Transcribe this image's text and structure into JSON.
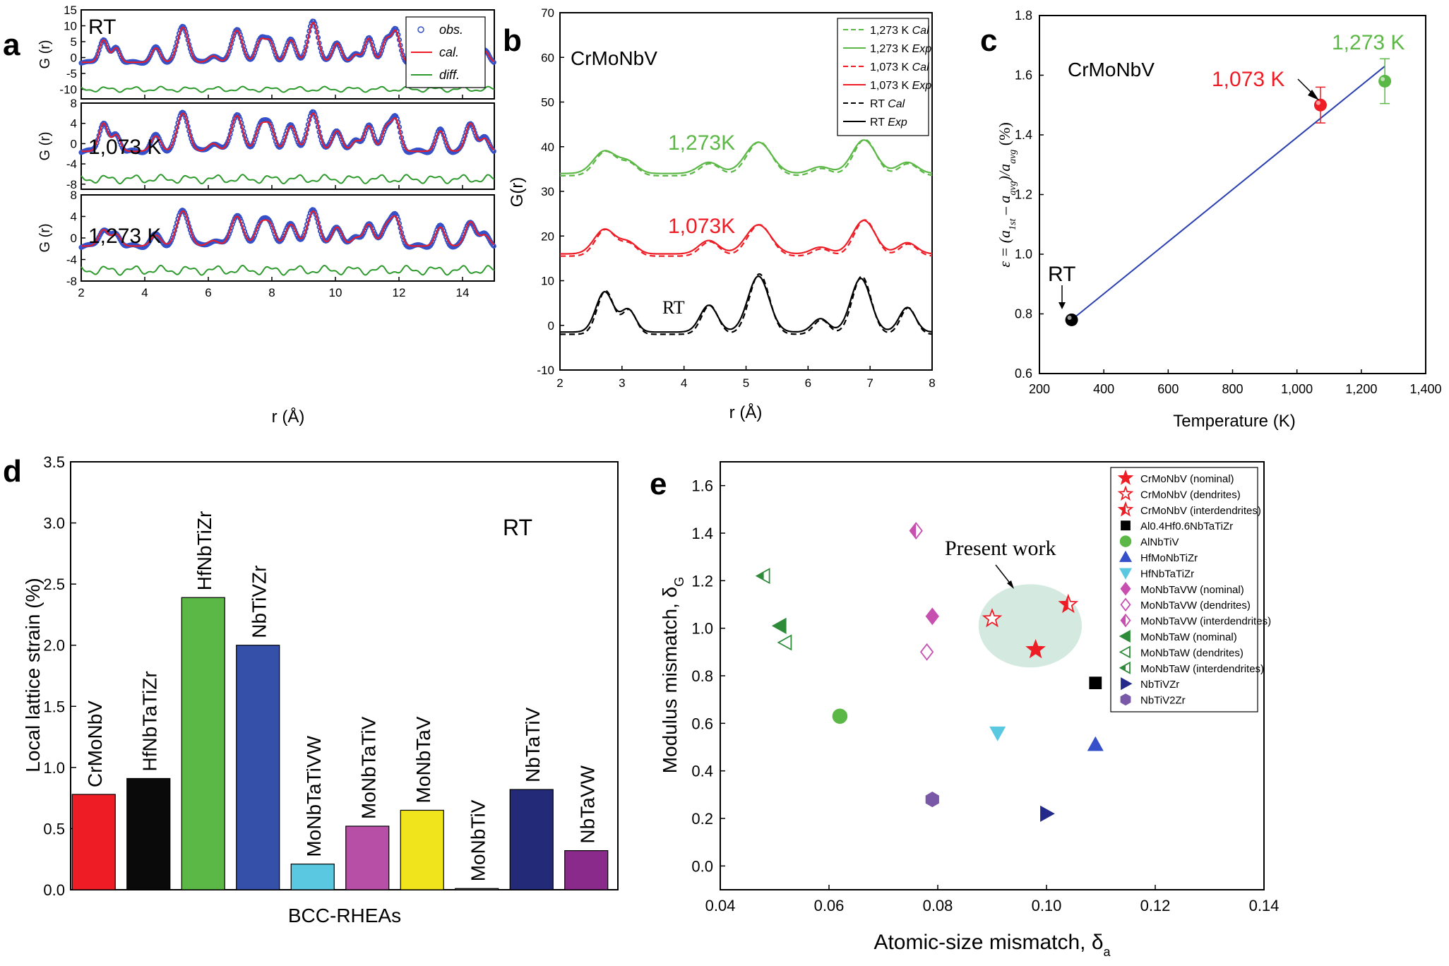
{
  "colors": {
    "red": "#ee1c25",
    "green": "#5cb846",
    "blue": "#3550c8",
    "black": "#000000",
    "diff": "#2e9a2e",
    "teal": "#cfe8dd"
  },
  "panels": {
    "a": {
      "label": "a",
      "xlabel": "r (Å)",
      "ylabel": "G (r)",
      "legend": [
        "obs.",
        "cal.",
        "diff."
      ],
      "sub": [
        {
          "title": "RT",
          "title_color": "#000000"
        },
        {
          "title": "1,073 K",
          "title_color": "#ee1c25"
        },
        {
          "title": "1,273 K",
          "title_color": "#5cb846"
        }
      ]
    },
    "b": {
      "label": "b",
      "title": "CrMoNbV",
      "xlabel": "r (Å)",
      "ylabel": "G(r)",
      "curve_labels": [
        "1,273K",
        "1,073K",
        "RT"
      ],
      "legend": [
        {
          "text": "1,273 K ",
          "em": "Cal"
        },
        {
          "text": "1,273 K ",
          "em": "Exp"
        },
        {
          "text": "1,073 K ",
          "em": "Cal"
        },
        {
          "text": "1,073 K ",
          "em": "Exp"
        },
        {
          "text": "RT ",
          "em": "Cal"
        },
        {
          "text": "RT ",
          "em": "Exp"
        }
      ]
    },
    "c": {
      "label": "c",
      "title": "CrMoNbV",
      "xlabel": "Temperature (K)",
      "ylabel_parts": [
        "ε = (a",
        "1st",
        " – a",
        "avg",
        ")/a",
        "avg",
        " (%)"
      ],
      "point_labels": [
        "RT",
        "1,073 K",
        "1,273 K"
      ]
    },
    "d": {
      "label": "d",
      "xlabel": "BCC-RHEAs",
      "ylabel": "Local lattice strain (%)",
      "annotation": "RT"
    },
    "e": {
      "label": "e",
      "xlabel_main": "Atomic-size mismatch, δ",
      "xlabel_sub": "a",
      "ylabel_main": "Modulus mismatch, δ",
      "ylabel_sub": "G",
      "annotation": "Present work"
    }
  },
  "chart_data": [
    {
      "panel": "a",
      "type": "line",
      "xlim": [
        2,
        15
      ],
      "xticks": [
        2,
        4,
        6,
        8,
        10,
        12,
        14
      ],
      "subplots": [
        {
          "condition": "RT",
          "ylim": [
            -13,
            15
          ],
          "yticks": [
            -10,
            -5,
            0,
            5,
            10,
            15
          ],
          "diff_offset": -10,
          "peaks": [
            [
              2.7,
              7,
              0.13
            ],
            [
              3.1,
              4.5,
              0.12
            ],
            [
              4.35,
              4.5,
              0.14
            ],
            [
              5.2,
              11,
              0.17
            ],
            [
              6.15,
              2,
              0.15
            ],
            [
              6.9,
              10,
              0.17
            ],
            [
              7.65,
              7,
              0.15
            ],
            [
              7.95,
              6,
              0.13
            ],
            [
              8.6,
              7,
              0.15
            ],
            [
              9.3,
              12.5,
              0.16
            ],
            [
              10.05,
              6,
              0.14
            ],
            [
              10.65,
              2.5,
              0.13
            ],
            [
              11.05,
              7.5,
              0.13
            ],
            [
              11.6,
              7,
              0.13
            ],
            [
              11.9,
              9.5,
              0.13
            ],
            [
              12.6,
              0,
              0.13
            ],
            [
              13.3,
              6,
              0.13
            ],
            [
              14.25,
              4,
              0.14
            ],
            [
              14.7,
              3.5,
              0.13
            ]
          ]
        },
        {
          "condition": "1,073 K",
          "ylim": [
            -9,
            8
          ],
          "yticks": [
            -8,
            -4,
            0,
            4,
            8
          ],
          "diff_offset": -7,
          "peaks": [
            [
              2.7,
              5.5,
              0.14
            ],
            [
              3.1,
              3.2,
              0.13
            ],
            [
              4.35,
              3,
              0.15
            ],
            [
              5.2,
              7.5,
              0.18
            ],
            [
              6.15,
              1.5,
              0.16
            ],
            [
              6.9,
              7,
              0.18
            ],
            [
              7.65,
              5,
              0.16
            ],
            [
              7.95,
              4.5,
              0.14
            ],
            [
              8.6,
              5,
              0.16
            ],
            [
              9.3,
              7.5,
              0.17
            ],
            [
              10.05,
              4,
              0.15
            ],
            [
              10.65,
              2,
              0.14
            ],
            [
              11.05,
              5,
              0.14
            ],
            [
              11.6,
              4.5,
              0.14
            ],
            [
              11.9,
              6,
              0.14
            ],
            [
              12.6,
              0,
              0.14
            ],
            [
              13.3,
              4,
              0.14
            ],
            [
              14.25,
              5.5,
              0.15
            ],
            [
              14.7,
              2.5,
              0.14
            ]
          ]
        },
        {
          "condition": "1,273 K",
          "ylim": [
            -8,
            8
          ],
          "yticks": [
            -8,
            -4,
            0,
            4,
            8
          ],
          "diff_offset": -6,
          "peaks": [
            [
              2.7,
              3,
              0.15
            ],
            [
              3.1,
              2.2,
              0.14
            ],
            [
              4.35,
              2,
              0.16
            ],
            [
              5.2,
              6.5,
              0.19
            ],
            [
              6.15,
              1,
              0.17
            ],
            [
              6.9,
              5.5,
              0.19
            ],
            [
              7.65,
              4,
              0.17
            ],
            [
              7.95,
              3.5,
              0.15
            ],
            [
              8.6,
              4,
              0.17
            ],
            [
              9.3,
              6.5,
              0.18
            ],
            [
              10.05,
              3.5,
              0.16
            ],
            [
              10.65,
              1.5,
              0.15
            ],
            [
              11.05,
              4,
              0.15
            ],
            [
              11.6,
              3.5,
              0.15
            ],
            [
              11.9,
              5,
              0.15
            ],
            [
              12.6,
              0,
              0.15
            ],
            [
              13.3,
              3.5,
              0.15
            ],
            [
              14.25,
              4.5,
              0.16
            ],
            [
              14.7,
              2,
              0.15
            ]
          ]
        }
      ]
    },
    {
      "panel": "b",
      "type": "line",
      "xlim": [
        2,
        8
      ],
      "ylim": [
        -10,
        70
      ],
      "xticks": [
        2,
        3,
        4,
        5,
        6,
        7,
        8
      ],
      "yticks": [
        -10,
        0,
        10,
        20,
        30,
        40,
        50,
        60,
        70
      ],
      "series": [
        {
          "name": "RT",
          "color": "#000000",
          "baseline": -1.5,
          "peaks": [
            [
              2.72,
              9,
              0.14
            ],
            [
              3.1,
              5,
              0.12
            ],
            [
              4.4,
              6,
              0.14
            ],
            [
              5.2,
              12.5,
              0.17
            ],
            [
              6.2,
              3,
              0.13
            ],
            [
              6.85,
              12,
              0.16
            ],
            [
              7.6,
              5.5,
              0.13
            ]
          ]
        },
        {
          "name": "1,073 K",
          "color": "#ee1c25",
          "baseline": 16,
          "peaks": [
            [
              2.72,
              5.5,
              0.17
            ],
            [
              3.1,
              2.5,
              0.14
            ],
            [
              4.4,
              3,
              0.16
            ],
            [
              5.2,
              6.5,
              0.2
            ],
            [
              6.2,
              1.5,
              0.15
            ],
            [
              6.9,
              7.5,
              0.18
            ],
            [
              7.6,
              2.5,
              0.15
            ]
          ]
        },
        {
          "name": "1,273 K",
          "color": "#5cb846",
          "baseline": 34,
          "peaks": [
            [
              2.72,
              5,
              0.18
            ],
            [
              3.1,
              2.5,
              0.15
            ],
            [
              4.4,
              2.5,
              0.17
            ],
            [
              5.2,
              7,
              0.21
            ],
            [
              6.2,
              1.5,
              0.16
            ],
            [
              6.9,
              7.5,
              0.19
            ],
            [
              7.6,
              2.5,
              0.16
            ]
          ]
        }
      ]
    },
    {
      "panel": "c",
      "type": "scatter",
      "xlim": [
        200,
        1400
      ],
      "ylim": [
        0.6,
        1.8
      ],
      "xticks": [
        200,
        400,
        600,
        800,
        1000,
        1200,
        1400
      ],
      "xticklabels": [
        "200",
        "400",
        "600",
        "800",
        "1,000",
        "1,200",
        "1,400"
      ],
      "yticks": [
        0.6,
        0.8,
        1.0,
        1.2,
        1.4,
        1.6,
        1.8
      ],
      "yticklabels": [
        "0.6",
        "0.8",
        "1.0",
        "1.2",
        "1.4",
        "1.6",
        "1.8"
      ],
      "points": [
        {
          "label": "RT",
          "x": 300,
          "y": 0.78,
          "err": 0.0,
          "color": "#000000"
        },
        {
          "label": "1,073 K",
          "x": 1073,
          "y": 1.5,
          "err": 0.06,
          "color": "#ee1c25"
        },
        {
          "label": "1,273 K",
          "x": 1273,
          "y": 1.58,
          "err": 0.075,
          "color": "#5cb846"
        }
      ],
      "fit_line": [
        [
          300,
          0.78
        ],
        [
          1273,
          1.63
        ]
      ]
    },
    {
      "panel": "d",
      "type": "bar",
      "ylim": [
        0,
        3.5
      ],
      "yticks": [
        0.0,
        0.5,
        1.0,
        1.5,
        2.0,
        2.5,
        3.0,
        3.5
      ],
      "yticklabels": [
        "0.0",
        "0.5",
        "1.0",
        "1.5",
        "2.0",
        "2.5",
        "3.0",
        "3.5"
      ],
      "categories": [
        "CrMoNbV",
        "HfNbTaTiZr",
        "HfNbTiZr",
        "NbTiVZr",
        "MoNbTaTiVW",
        "MoNbTaTiV",
        "MoNbTaV",
        "MoNbTiV",
        "NbTaTiV",
        "NbTaVW"
      ],
      "values": [
        0.78,
        0.91,
        2.39,
        2.0,
        0.21,
        0.52,
        0.65,
        0.01,
        0.82,
        0.32
      ],
      "colors": [
        "#ee1c25",
        "#0a0a0a",
        "#5cb846",
        "#3550a8",
        "#5ac8e0",
        "#b84fa6",
        "#f0e41c",
        "#7a7a7a",
        "#232a78",
        "#8a2a8a"
      ],
      "label_colors": [
        "#ee1c25",
        "#000000",
        "#000000",
        "#000000",
        "#000000",
        "#000000",
        "#000000",
        "#000000",
        "#000000",
        "#000000"
      ]
    },
    {
      "panel": "e",
      "type": "scatter",
      "xlim": [
        0.04,
        0.14
      ],
      "ylim": [
        -0.1,
        1.7
      ],
      "xticks": [
        0.04,
        0.06,
        0.08,
        0.1,
        0.12,
        0.14
      ],
      "xticklabels": [
        "0.04",
        "0.06",
        "0.08",
        "0.10",
        "0.12",
        "0.14"
      ],
      "yticks": [
        0.0,
        0.2,
        0.4,
        0.6,
        0.8,
        1.0,
        1.2,
        1.4,
        1.6
      ],
      "yticklabels": [
        "0.0",
        "0.2",
        "0.4",
        "0.6",
        "0.8",
        "1.0",
        "1.2",
        "1.4",
        "1.6"
      ],
      "series": [
        {
          "name": "CrMoNbV (nominal)",
          "marker": "star",
          "fill": "full",
          "color": "#ee1c25",
          "points": [
            [
              0.098,
              0.91
            ]
          ]
        },
        {
          "name": "CrMoNbV (dendrites)",
          "marker": "star",
          "fill": "open",
          "color": "#ee1c25",
          "points": [
            [
              0.09,
              1.04
            ]
          ]
        },
        {
          "name": "CrMoNbV (interdendrites)",
          "marker": "star",
          "fill": "half",
          "color": "#ee1c25",
          "points": [
            [
              0.104,
              1.1
            ]
          ]
        },
        {
          "name": "Al0.4Hf0.6NbTaTiZr",
          "marker": "square",
          "fill": "full",
          "color": "#000000",
          "points": [
            [
              0.109,
              0.77
            ]
          ]
        },
        {
          "name": "AlNbTiV",
          "marker": "circle",
          "fill": "full",
          "color": "#5cb846",
          "points": [
            [
              0.062,
              0.63
            ]
          ]
        },
        {
          "name": "HfMoNbTiZr",
          "marker": "tri-up",
          "fill": "full",
          "color": "#3550c8",
          "points": [
            [
              0.109,
              0.51
            ]
          ]
        },
        {
          "name": "HfNbTaTiZr",
          "marker": "tri-down",
          "fill": "full",
          "color": "#5ac8e0",
          "points": [
            [
              0.091,
              0.56
            ]
          ]
        },
        {
          "name": "MoNbTaVW (nominal)",
          "marker": "diamond",
          "fill": "full",
          "color": "#c64fb0",
          "points": [
            [
              0.079,
              1.05
            ]
          ]
        },
        {
          "name": "MoNbTaVW (dendrites)",
          "marker": "diamond",
          "fill": "open",
          "color": "#c64fb0",
          "points": [
            [
              0.078,
              0.9
            ]
          ]
        },
        {
          "name": "MoNbTaVW (interdendrites)",
          "marker": "diamond",
          "fill": "half",
          "color": "#c64fb0",
          "points": [
            [
              0.076,
              1.41
            ]
          ]
        },
        {
          "name": "MoNbTaW (nominal)",
          "marker": "tri-left",
          "fill": "full",
          "color": "#2e8b3a",
          "points": [
            [
              0.051,
              1.01
            ]
          ]
        },
        {
          "name": "MoNbTaW (dendrites)",
          "marker": "tri-left",
          "fill": "open",
          "color": "#2e8b3a",
          "points": [
            [
              0.052,
              0.94
            ]
          ]
        },
        {
          "name": "MoNbTaW (interdendrites)",
          "marker": "tri-left",
          "fill": "half",
          "color": "#2e8b3a",
          "points": [
            [
              0.048,
              1.22
            ]
          ]
        },
        {
          "name": "NbTiVZr",
          "marker": "tri-right",
          "fill": "full",
          "color": "#232a8a",
          "points": [
            [
              0.1,
              0.22
            ]
          ]
        },
        {
          "name": "NbTiV2Zr",
          "marker": "hexagon",
          "fill": "full",
          "color": "#7a58a8",
          "points": [
            [
              0.079,
              0.28
            ]
          ]
        }
      ],
      "highlight_ellipse": {
        "cx": 0.097,
        "cy": 1.01,
        "rx": 0.0095,
        "ry": 0.175
      }
    }
  ]
}
